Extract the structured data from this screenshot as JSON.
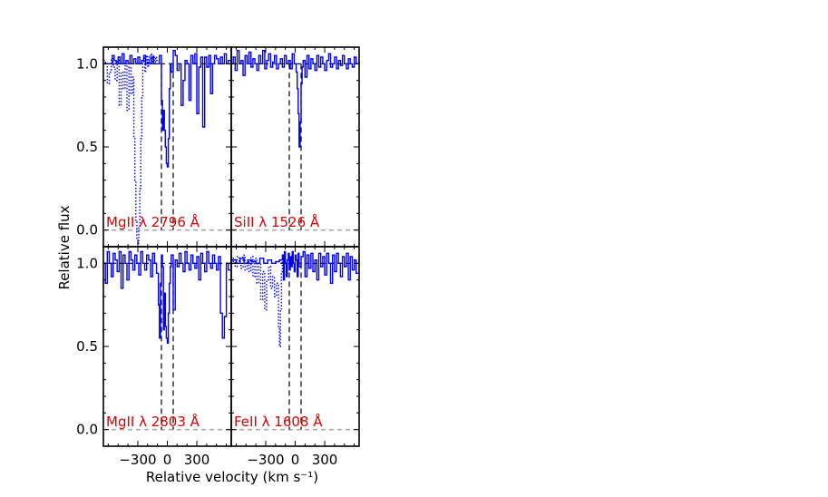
{
  "chart_data": {
    "type": "line",
    "xlabel": "Relative velocity (km s⁻¹)",
    "ylabel": "Relative flux",
    "xlim": [
      -650,
      650
    ],
    "ylim": [
      -0.1,
      1.1
    ],
    "x_ticks": [
      -300,
      0,
      300
    ],
    "x_tick_labels": [
      "−300",
      "0",
      "300"
    ],
    "y_ticks": [
      0.0,
      0.5,
      1.0
    ],
    "y_tick_labels": [
      "0.0",
      "0.5",
      "1.0"
    ],
    "component_markers_kms": [
      -60,
      60
    ],
    "colors": {
      "spectrum": "#0000ff",
      "label": "#e00000",
      "marker": "#000000",
      "zero_line": "#aaaaaa"
    },
    "panels": [
      {
        "label": "MgII λ 2796 Å",
        "velocity": [
          -650,
          -600,
          -560,
          -540,
          -520,
          -500,
          -480,
          -460,
          -440,
          -420,
          -400,
          -380,
          -360,
          -340,
          -320,
          -300,
          -280,
          -260,
          -240,
          -220,
          -200,
          -180,
          -160,
          -140,
          -120,
          -100,
          -80,
          -60,
          -50,
          -40,
          -30,
          -20,
          -10,
          0,
          10,
          20,
          30,
          40,
          60,
          80,
          100,
          120,
          140,
          160,
          180,
          200,
          220,
          240,
          260,
          280,
          300,
          320,
          340,
          360,
          380,
          400,
          420,
          440,
          460,
          480,
          500,
          520,
          540,
          560,
          580,
          600,
          620,
          650
        ],
        "flux": [
          1.0,
          1.0,
          1.05,
          1.02,
          1.0,
          1.04,
          1.0,
          1.06,
          1.0,
          1.02,
          1.0,
          1.05,
          1.0,
          1.03,
          1.0,
          1.04,
          1.0,
          1.02,
          1.05,
          1.0,
          1.01,
          1.0,
          1.04,
          1.0,
          1.0,
          1.0,
          1.05,
          0.78,
          0.6,
          0.72,
          0.6,
          0.5,
          0.4,
          0.38,
          0.55,
          0.85,
          1.0,
          0.95,
          1.08,
          1.05,
          0.96,
          1.0,
          0.75,
          0.9,
          1.02,
          1.0,
          0.78,
          1.05,
          1.0,
          1.06,
          0.7,
          0.98,
          1.04,
          0.62,
          1.04,
          0.98,
          1.05,
          0.82,
          1.0,
          1.05,
          1.03,
          1.0,
          1.04,
          1.0,
          1.06,
          1.0,
          1.02,
          1.0
        ],
        "contaminant_velocity": [
          -650,
          -630,
          -610,
          -590,
          -570,
          -550,
          -530,
          -510,
          -490,
          -470,
          -450,
          -430,
          -410,
          -390,
          -370,
          -350,
          -340,
          -330,
          -320,
          -310,
          -300,
          -290,
          -280,
          -270,
          -260,
          -250,
          -240,
          -230,
          -220,
          -210,
          -200,
          -190,
          -180,
          -170,
          -160,
          -150,
          -140,
          -130,
          -120,
          -110,
          -100
        ],
        "contaminant_flux": [
          1.02,
          1.0,
          0.88,
          0.95,
          1.03,
          0.98,
          0.9,
          1.02,
          0.75,
          0.95,
          0.85,
          1.0,
          0.72,
          0.98,
          0.82,
          0.92,
          0.55,
          0.3,
          0.05,
          -0.05,
          -0.08,
          0.02,
          0.25,
          0.55,
          0.8,
          1.0,
          1.04,
          0.95,
          1.02,
          1.05,
          0.98,
          1.04,
          1.02,
          1.06,
          1.0,
          1.03,
          1.05,
          1.0,
          1.04,
          1.02,
          1.03
        ]
      },
      {
        "label": "SiII λ 1526 Å",
        "velocity": [
          -650,
          -630,
          -610,
          -590,
          -570,
          -550,
          -530,
          -510,
          -490,
          -470,
          -450,
          -430,
          -410,
          -390,
          -370,
          -350,
          -330,
          -310,
          -290,
          -270,
          -250,
          -230,
          -210,
          -190,
          -170,
          -150,
          -130,
          -110,
          -90,
          -70,
          -50,
          -30,
          -10,
          10,
          20,
          30,
          40,
          50,
          60,
          70,
          80,
          100,
          120,
          140,
          160,
          180,
          200,
          220,
          240,
          260,
          280,
          300,
          320,
          340,
          360,
          380,
          400,
          420,
          440,
          460,
          480,
          500,
          520,
          540,
          560,
          580,
          600,
          620,
          650
        ],
        "flux": [
          1.0,
          1.04,
          0.96,
          1.08,
          1.0,
          1.02,
          0.93,
          1.05,
          1.0,
          1.07,
          0.98,
          1.03,
          1.0,
          0.96,
          1.05,
          1.0,
          1.08,
          0.97,
          1.02,
          1.06,
          0.98,
          1.01,
          1.05,
          0.97,
          1.0,
          1.03,
          0.98,
          1.05,
          1.0,
          1.02,
          0.97,
          1.06,
          1.0,
          0.95,
          0.85,
          0.7,
          0.5,
          0.65,
          0.88,
          0.98,
          1.02,
          0.92,
          1.05,
          0.97,
          1.03,
          1.0,
          0.96,
          1.05,
          0.98,
          1.04,
          1.0,
          0.96,
          1.02,
          1.06,
          0.98,
          1.0,
          1.04,
          0.97,
          1.02,
          0.99,
          1.05,
          1.0,
          0.97,
          1.03,
          1.0,
          0.98,
          1.04,
          1.0,
          1.02
        ],
        "contaminant_velocity": [],
        "contaminant_flux": []
      },
      {
        "label": "MgII λ 2803 Å",
        "velocity": [
          -650,
          -630,
          -610,
          -590,
          -570,
          -550,
          -530,
          -510,
          -490,
          -470,
          -450,
          -430,
          -410,
          -390,
          -370,
          -350,
          -330,
          -310,
          -290,
          -270,
          -250,
          -230,
          -210,
          -190,
          -170,
          -150,
          -130,
          -110,
          -90,
          -80,
          -70,
          -60,
          -50,
          -40,
          -30,
          -20,
          -10,
          0,
          10,
          20,
          30,
          40,
          60,
          80,
          100,
          120,
          140,
          160,
          180,
          200,
          220,
          240,
          260,
          280,
          300,
          320,
          340,
          360,
          380,
          400,
          420,
          440,
          460,
          480,
          500,
          520,
          540,
          560,
          580,
          600,
          620,
          650
        ],
        "flux": [
          1.0,
          0.88,
          1.07,
          1.0,
          0.92,
          1.06,
          1.02,
          0.95,
          1.07,
          0.85,
          1.05,
          1.0,
          0.9,
          1.07,
          1.02,
          0.96,
          1.05,
          1.0,
          0.93,
          1.07,
          1.0,
          0.96,
          1.05,
          1.02,
          0.92,
          1.06,
          1.0,
          0.94,
          0.75,
          0.55,
          0.88,
          1.05,
          0.98,
          0.6,
          0.82,
          0.62,
          0.55,
          0.52,
          0.7,
          0.88,
          0.98,
          1.05,
          0.72,
          1.02,
          0.98,
          1.06,
          1.0,
          0.95,
          1.07,
          1.0,
          0.96,
          1.05,
          1.0,
          0.97,
          1.04,
          0.9,
          1.06,
          1.0,
          0.95,
          1.07,
          1.0,
          0.97,
          1.05,
          1.0,
          0.96,
          1.04,
          0.7,
          0.55,
          0.68,
          1.0,
          0.96,
          1.04
        ]
      },
      {
        "label": "FeII λ 1608 Å",
        "velocity": [
          -650,
          -600,
          -560,
          -520,
          -480,
          -440,
          -400,
          -360,
          -320,
          -280,
          -240,
          -200,
          -160,
          -130,
          -120,
          -110,
          -100,
          -90,
          -80,
          -70,
          -60,
          -50,
          -40,
          -30,
          -20,
          -10,
          0,
          10,
          20,
          30,
          40,
          60,
          80,
          100,
          120,
          140,
          160,
          180,
          200,
          220,
          240,
          260,
          280,
          300,
          320,
          340,
          360,
          380,
          400,
          420,
          440,
          460,
          480,
          500,
          520,
          540,
          560,
          580,
          600,
          620,
          650
        ],
        "flux": [
          1.02,
          1.0,
          1.03,
          1.0,
          1.02,
          1.01,
          1.0,
          1.03,
          1.0,
          1.02,
          1.0,
          1.01,
          1.02,
          1.05,
          0.9,
          1.07,
          1.0,
          0.92,
          1.02,
          1.06,
          0.96,
          1.04,
          0.98,
          1.07,
          1.0,
          0.95,
          1.05,
          1.02,
          0.92,
          1.06,
          0.98,
          1.04,
          1.07,
          0.92,
          1.05,
          0.97,
          1.06,
          0.95,
          1.02,
          0.9,
          1.06,
          0.98,
          1.04,
          0.93,
          1.06,
          1.0,
          0.88,
          1.05,
          0.95,
          1.06,
          1.0,
          0.92,
          1.04,
          0.98,
          1.06,
          0.9,
          1.04,
          0.96,
          1.02,
          0.94,
          1.04
        ],
        "contaminant_velocity": [
          -650,
          -630,
          -610,
          -590,
          -570,
          -550,
          -530,
          -510,
          -490,
          -470,
          -450,
          -430,
          -410,
          -390,
          -370,
          -350,
          -330,
          -310,
          -290,
          -270,
          -250,
          -230,
          -210,
          -190,
          -170,
          -160,
          -150,
          -140,
          -130
        ],
        "contaminant_flux": [
          1.0,
          1.03,
          0.98,
          1.04,
          1.0,
          0.97,
          1.05,
          0.96,
          1.02,
          0.95,
          1.04,
          0.92,
          1.03,
          0.88,
          1.0,
          0.78,
          0.95,
          0.72,
          0.9,
          0.98,
          0.85,
          0.92,
          0.8,
          0.88,
          0.62,
          0.5,
          0.72,
          0.95,
          1.04
        ]
      }
    ]
  }
}
